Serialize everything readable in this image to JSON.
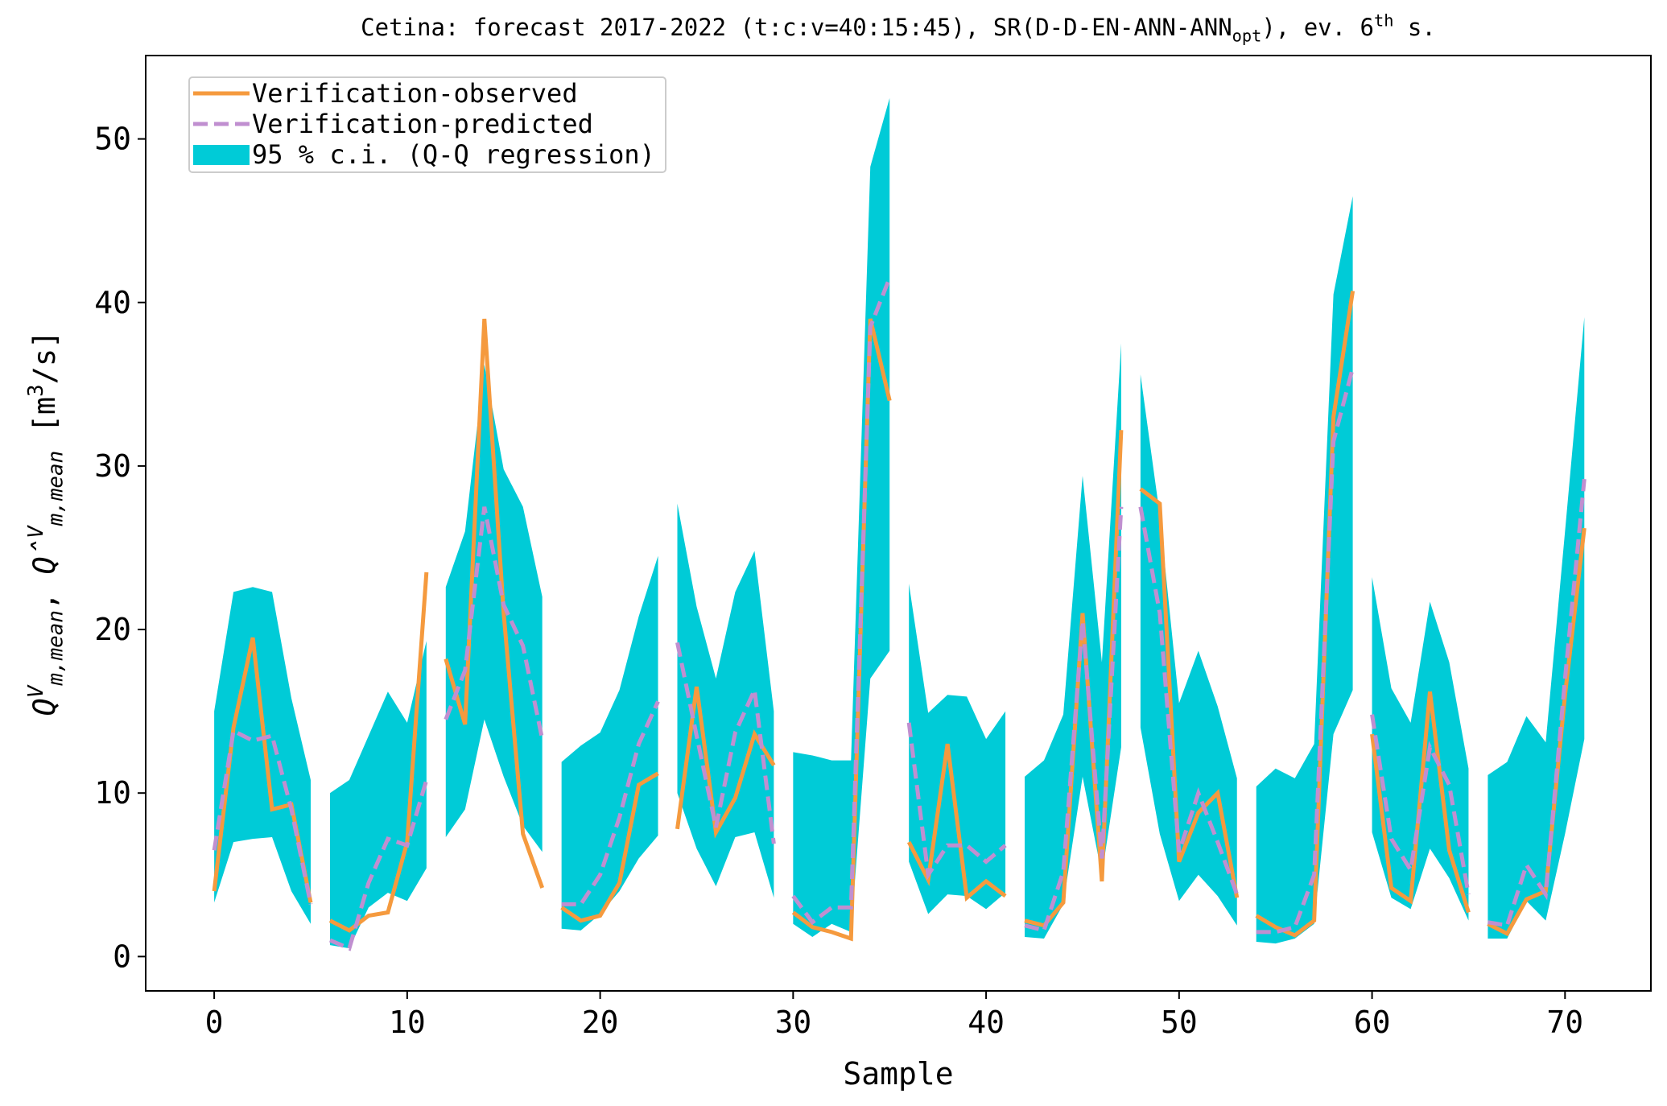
{
  "chart_data": {
    "type": "band-line",
    "title_parts": [
      {
        "text": "Cetina: forecast 2017-2022 (t:c:v=40:15:45), SR(D-D-EN-ANN-ANN"
      },
      {
        "text": "opt",
        "pos": "sub"
      },
      {
        "text": "), ev. 6"
      },
      {
        "text": "th",
        "pos": "sup"
      },
      {
        "text": " s."
      }
    ],
    "ylabel_parts": [
      {
        "text": "Q",
        "italic": true
      },
      {
        "text": "V",
        "pos": "sup",
        "italic": true
      },
      {
        "text": "m,mean",
        "pos": "sub",
        "italic": true
      },
      {
        "text": ",  "
      },
      {
        "text": "Q̂",
        "italic": true
      },
      {
        "text": "V",
        "pos": "sup",
        "italic": true
      },
      {
        "text": "m,mean",
        "pos": "sub",
        "italic": true
      },
      {
        "text": "  [m"
      },
      {
        "text": "3",
        "pos": "sup"
      },
      {
        "text": "/s]"
      }
    ],
    "xlabel": "Sample",
    "xlim": [
      -3.55,
      74.45
    ],
    "ylim": [
      -2.1,
      55.1
    ],
    "xticks": [
      0,
      10,
      20,
      30,
      40,
      50,
      60,
      70
    ],
    "yticks": [
      0,
      10,
      20,
      30,
      40,
      50
    ],
    "legend": "upper left",
    "series": [
      {
        "name": "Verification-observed",
        "color": "#f59a3e",
        "key": "observed",
        "dash": false
      },
      {
        "name": "Verification-predicted",
        "color": "#c08fd0",
        "key": "predicted",
        "dash": true
      },
      {
        "name": "95 % c.i. (Q-Q regression)",
        "color": "#00cbd7",
        "key": "band"
      }
    ],
    "segments": [
      {
        "x": [
          0,
          1,
          2,
          3,
          4,
          5
        ],
        "observed": [
          4,
          14,
          19.5,
          9,
          9.3,
          3.3
        ],
        "predicted": [
          6.5,
          13.8,
          13.2,
          13.5,
          9,
          3.2
        ],
        "lower": [
          3.3,
          7,
          7.2,
          7.3,
          4,
          2
        ],
        "upper": [
          15,
          22.3,
          22.6,
          22.3,
          15.8,
          10.8
        ]
      },
      {
        "x": [
          6,
          7,
          8,
          9,
          10,
          11
        ],
        "observed": [
          2.2,
          1.6,
          2.5,
          2.7,
          7,
          23.5
        ],
        "predicted": [
          1,
          0.5,
          4.5,
          7.2,
          6.8,
          10.8
        ],
        "lower": [
          0.7,
          0.5,
          3,
          3.9,
          3.4,
          5.4
        ],
        "upper": [
          10,
          10.8,
          13.5,
          16.2,
          14.3,
          19.3
        ]
      },
      {
        "x": [
          12,
          13,
          14,
          15,
          16,
          17
        ],
        "observed": [
          18.2,
          14.2,
          39,
          21,
          7.5,
          4.2
        ],
        "predicted": [
          14.5,
          17.5,
          27.5,
          21.5,
          19,
          13.3
        ],
        "lower": [
          7.3,
          9,
          14.5,
          11,
          8,
          6.4
        ],
        "upper": [
          22.6,
          26,
          36.2,
          29.8,
          27.5,
          22
        ]
      },
      {
        "x": [
          18,
          19,
          20,
          21,
          22,
          23
        ],
        "observed": [
          3,
          2.2,
          2.5,
          4.5,
          10.5,
          11.2
        ],
        "predicted": [
          3.2,
          3.2,
          5,
          8.5,
          13,
          15.6
        ],
        "lower": [
          1.7,
          1.6,
          2.6,
          4,
          6,
          7.4
        ],
        "upper": [
          11.9,
          12.9,
          13.7,
          16.3,
          20.8,
          24.5
        ]
      },
      {
        "x": [
          24,
          25,
          26,
          27,
          28,
          29
        ],
        "observed": [
          7.8,
          16.5,
          7.6,
          9.7,
          13.6,
          11.7
        ],
        "predicted": [
          19.2,
          13.5,
          7.9,
          13.7,
          16.3,
          6.9
        ],
        "lower": [
          10,
          6.6,
          4.3,
          7.3,
          7.6,
          3.6
        ],
        "upper": [
          27.7,
          21.4,
          17,
          22.3,
          24.8,
          15
        ]
      },
      {
        "x": [
          30,
          31,
          32,
          33,
          34,
          35
        ],
        "observed": [
          2.7,
          1.8,
          1.5,
          1.1,
          39,
          34
        ],
        "predicted": [
          3.7,
          2.1,
          3,
          3,
          38.5,
          41.5
        ],
        "lower": [
          2,
          1.2,
          2,
          1.5,
          17,
          18.7
        ],
        "upper": [
          12.5,
          12.3,
          12,
          12,
          48.3,
          52.5
        ]
      },
      {
        "x": [
          36,
          37,
          38,
          39,
          40,
          41
        ],
        "observed": [
          7,
          4.7,
          13,
          3.6,
          4.6,
          3.7
        ],
        "predicted": [
          14.3,
          5,
          6.8,
          6.8,
          5.8,
          6.8
        ],
        "lower": [
          5.8,
          2.6,
          3.8,
          3.7,
          2.9,
          3.9
        ],
        "upper": [
          22.8,
          14.9,
          16,
          15.9,
          13.3,
          15
        ]
      },
      {
        "x": [
          42,
          43,
          44,
          45,
          46,
          47
        ],
        "observed": [
          2.2,
          1.9,
          3.3,
          21,
          4.6,
          32.2
        ],
        "predicted": [
          1.9,
          1.6,
          5.2,
          20.5,
          6,
          27.5
        ],
        "lower": [
          1.2,
          1.1,
          3.2,
          11,
          5,
          12.8
        ],
        "upper": [
          11,
          12,
          14.8,
          29.4,
          18,
          37.5
        ]
      },
      {
        "x": [
          48,
          49,
          50,
          51,
          52,
          53
        ],
        "observed": [
          28.6,
          27.7,
          5.8,
          8.8,
          10,
          3.6
        ],
        "predicted": [
          27.5,
          21,
          6.4,
          10,
          7,
          3.8
        ],
        "lower": [
          14,
          7.5,
          3.4,
          5,
          3.7,
          1.9
        ],
        "upper": [
          35.6,
          27,
          15.5,
          18.7,
          15.3,
          10.9
        ]
      },
      {
        "x": [
          54,
          55,
          56,
          57,
          58,
          59
        ],
        "observed": [
          2.5,
          1.8,
          1.3,
          2.2,
          33,
          40.7
        ],
        "predicted": [
          1.5,
          1.5,
          1.8,
          5,
          31.5,
          36
        ],
        "lower": [
          0.9,
          0.8,
          1.1,
          2,
          13.6,
          16.3
        ],
        "upper": [
          10.4,
          11.5,
          10.9,
          13,
          40.5,
          46.5
        ]
      },
      {
        "x": [
          60,
          61,
          62,
          63,
          64,
          65
        ],
        "observed": [
          13.6,
          4.2,
          3.4,
          16.2,
          6.5,
          2.7
        ],
        "predicted": [
          14.8,
          7.2,
          5.3,
          12.8,
          10.5,
          3.8
        ],
        "lower": [
          7.6,
          3.6,
          2.9,
          6.6,
          4.8,
          2.2
        ],
        "upper": [
          23.2,
          16.4,
          14.3,
          21.7,
          18,
          11.5
        ]
      },
      {
        "x": [
          66,
          67,
          68,
          69,
          70,
          71
        ],
        "observed": [
          2,
          1.4,
          3.5,
          4,
          16,
          26.2
        ],
        "predicted": [
          2.1,
          1.9,
          5.6,
          3.8,
          17,
          29.2
        ],
        "lower": [
          1.1,
          1.1,
          3.4,
          2.2,
          7.5,
          13.3
        ],
        "upper": [
          11.1,
          11.9,
          14.7,
          13.1,
          26,
          39.1
        ]
      }
    ]
  }
}
